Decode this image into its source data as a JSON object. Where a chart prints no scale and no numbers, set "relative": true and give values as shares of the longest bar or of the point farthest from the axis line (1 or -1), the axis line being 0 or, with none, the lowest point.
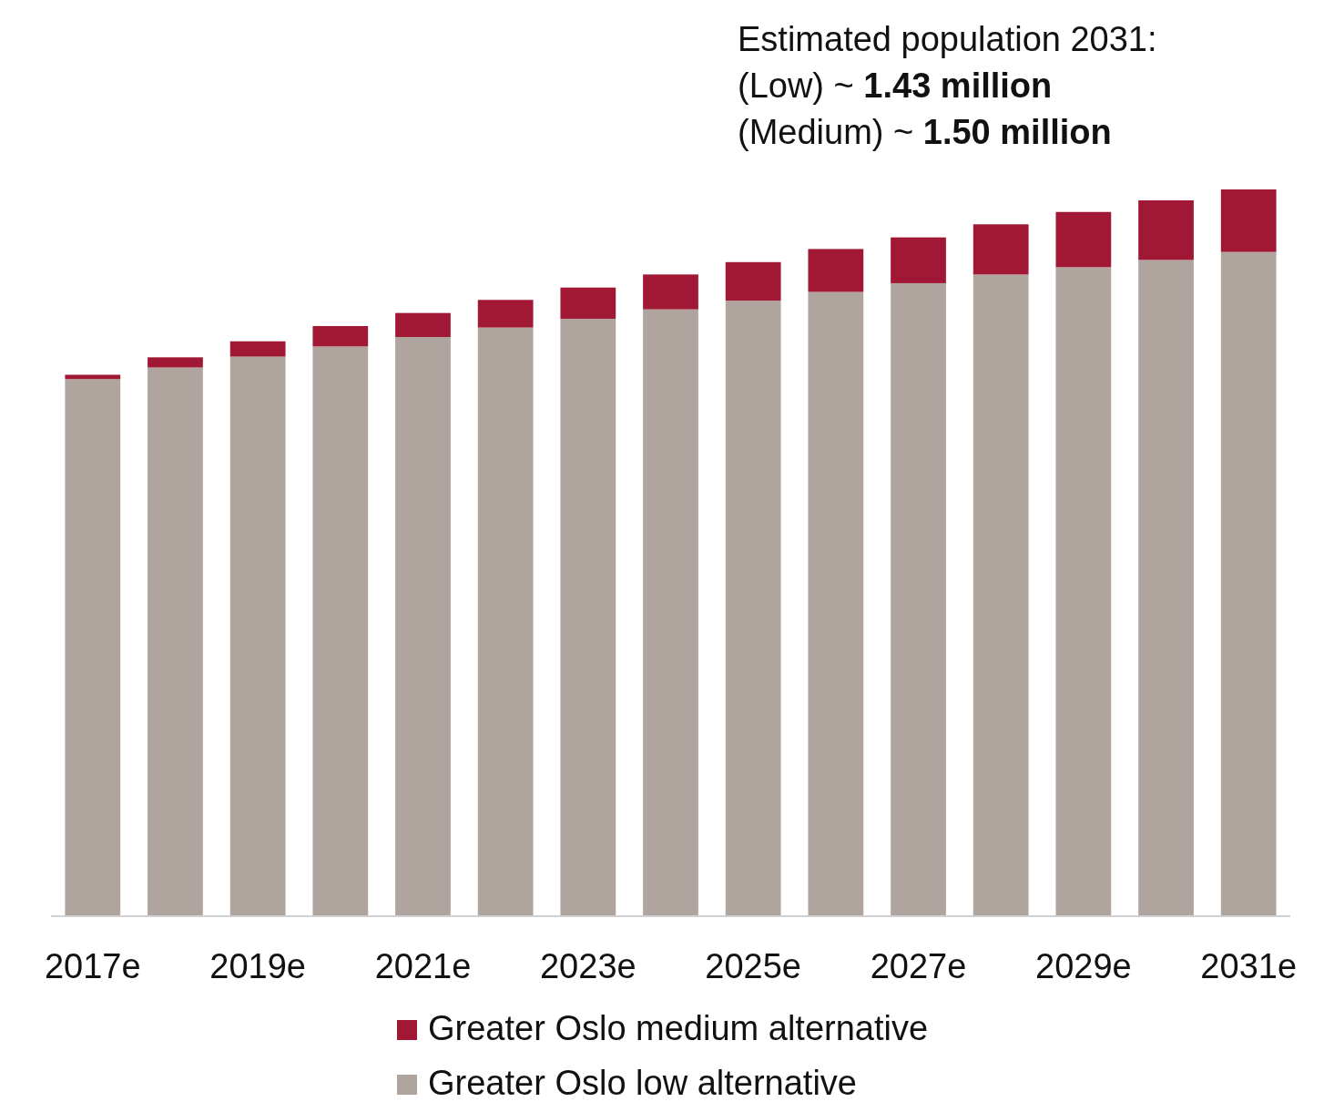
{
  "chart_data": {
    "type": "bar",
    "stacked": true,
    "relative": true,
    "categories": [
      "2017e",
      null,
      "2019e",
      null,
      "2021e",
      null,
      "2023e",
      null,
      "2025e",
      null,
      "2027e",
      null,
      "2029e",
      null,
      "2031e"
    ],
    "series": [
      {
        "name": "Greater Oslo low alternative",
        "color": "#afa59e",
        "values": [
          0.739,
          0.755,
          0.77,
          0.784,
          0.797,
          0.81,
          0.822,
          0.835,
          0.847,
          0.859,
          0.871,
          0.883,
          0.893,
          0.903,
          0.914
        ]
      },
      {
        "name": "Greater Oslo medium alternative",
        "color": "#a01834",
        "values": [
          0.006,
          0.014,
          0.021,
          0.028,
          0.033,
          0.038,
          0.043,
          0.048,
          0.053,
          0.059,
          0.063,
          0.069,
          0.076,
          0.082,
          0.086
        ]
      }
    ],
    "annotations": [
      "Estimated population 2031:",
      "(Low) ~ 1.43 million",
      "(Medium) ~ 1.50 million"
    ],
    "legend": "bottom"
  }
}
